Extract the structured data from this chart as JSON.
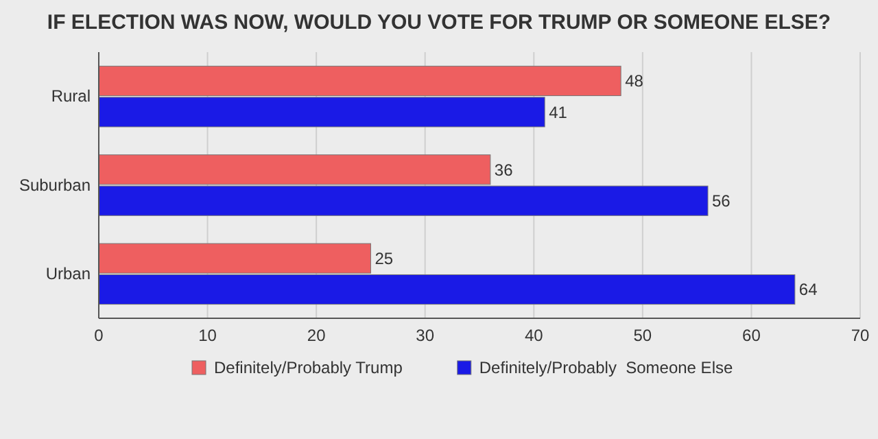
{
  "chart_data": {
    "type": "bar",
    "orientation": "horizontal",
    "title": "IF ELECTION WAS NOW, WOULD YOU VOTE FOR TRUMP OR SOMEONE ELSE?",
    "categories": [
      "Rural",
      "Suburban",
      "Urban"
    ],
    "series": [
      {
        "name": "Definitely/Probably Trump",
        "color": "#ee5f60",
        "values": [
          48,
          36,
          25
        ]
      },
      {
        "name": "Definitely/Probably  Someone Else",
        "color": "#1a1ae6",
        "values": [
          41,
          56,
          64
        ]
      }
    ],
    "xlim": [
      0,
      70
    ],
    "xticks": [
      0,
      10,
      20,
      30,
      40,
      50,
      60,
      70
    ],
    "grid": "x",
    "legend": "bottom",
    "data_labels": true
  }
}
